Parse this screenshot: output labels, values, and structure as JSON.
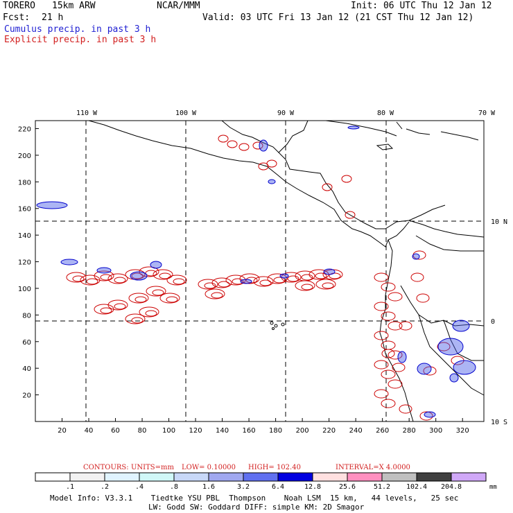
{
  "header": {
    "model": "TORERO",
    "resolution": "15km ARW",
    "center": "NCAR/MMM",
    "init": "Init: 06 UTC Thu 12 Jan 12",
    "fcst_label": "Fcst:",
    "fcst_hours": "21 h",
    "valid": "Valid: 03 UTC Fri 13 Jan 12 (21 CST Thu 12 Jan 12)",
    "cumulus_label": "Cumulus precip. in past 3 h",
    "explicit_label": "Explicit precip. in past 3 h"
  },
  "colors": {
    "cumulus": "#0000cc",
    "explicit": "#cc0000",
    "coast": "#000000",
    "grid": "#000000"
  },
  "map": {
    "lon_labels": [
      "110 W",
      "100 W",
      "90 W",
      "80 W",
      "70 W"
    ],
    "lat_labels": [
      "10 N",
      "0",
      "10 S"
    ],
    "x_ticks": [
      "20",
      "40",
      "60",
      "80",
      "100",
      "120",
      "140",
      "160",
      "180",
      "200",
      "220",
      "240",
      "260",
      "280",
      "300",
      "320"
    ],
    "y_ticks": [
      "20",
      "40",
      "60",
      "80",
      "100",
      "120",
      "140",
      "160",
      "180",
      "200",
      "220"
    ]
  },
  "contour_info": {
    "label": "CONTOURS:",
    "units": "UNITS=mm",
    "low": "LOW= 0.10000",
    "high": "HIGH= 102.40",
    "interval": "INTERVAL=X 4.0000"
  },
  "colorbar": {
    "colors": [
      "#ffffff",
      "#f2f2f2",
      "#e0f4ff",
      "#d0f8f8",
      "#c8d8f8",
      "#a0a8f0",
      "#6070f0",
      "#0000e0",
      "#ffe0e0",
      "#ff90c0",
      "#c0c0c0",
      "#404040",
      "#d0a8f8"
    ],
    "labels": [
      ".1",
      ".2",
      ".4",
      ".8",
      "1.6",
      "3.2",
      "6.4",
      "12.8",
      "25.6",
      "51.2",
      "102.4",
      "204.8"
    ],
    "unit": "mm"
  },
  "footer": {
    "line1": "Model Info: V3.3.1    Tiedtke YSU PBL  Thompson    Noah LSM  15 km,   44 levels,   25 sec",
    "line2": "LW: Godd SW: Goddard DIFF: simple KM: 2D Smagor"
  }
}
